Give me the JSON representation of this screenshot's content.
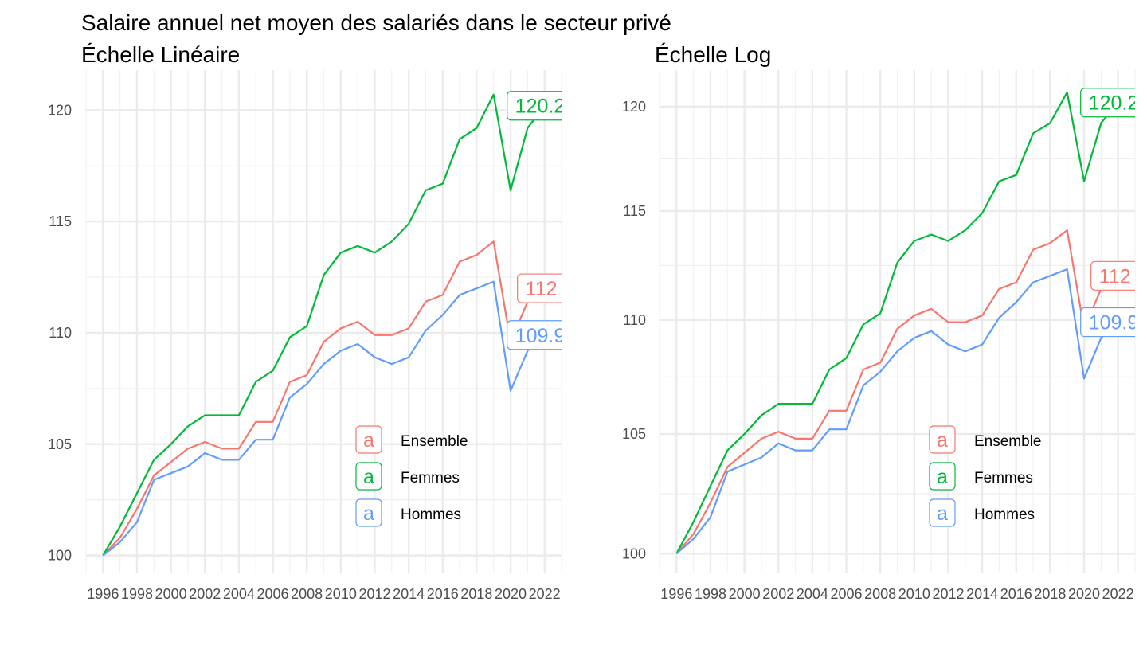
{
  "chart_data": [
    {
      "type": "line",
      "title": "Salaire annuel net moyen des salariés dans le secteur privé",
      "subtitle": "Échelle Linéaire",
      "scale": "linear",
      "xlabel": "",
      "ylabel": "",
      "xlim": [
        1995,
        2023
      ],
      "ylim": [
        99.2,
        121.8
      ],
      "x_ticks": [
        1996,
        1998,
        2000,
        2002,
        2004,
        2006,
        2008,
        2010,
        2012,
        2014,
        2016,
        2018,
        2020,
        2022
      ],
      "y_ticks": [
        100,
        105,
        110,
        115,
        120
      ],
      "grid": true,
      "legend_position": "bottom-right"
    },
    {
      "type": "line",
      "subtitle": "Échelle Log",
      "scale": "log",
      "xlabel": "",
      "ylabel": "",
      "xlim": [
        1995,
        2023
      ],
      "ylim": [
        99.2,
        121.8
      ],
      "x_ticks": [
        1996,
        1998,
        2000,
        2002,
        2004,
        2006,
        2008,
        2010,
        2012,
        2014,
        2016,
        2018,
        2020,
        2022
      ],
      "y_ticks": [
        100,
        105,
        110,
        115,
        120
      ],
      "grid": true,
      "legend_position": "bottom-right"
    }
  ],
  "x": [
    1996,
    1997,
    1998,
    1999,
    2000,
    2001,
    2002,
    2003,
    2004,
    2005,
    2006,
    2007,
    2008,
    2009,
    2010,
    2011,
    2012,
    2013,
    2014,
    2015,
    2016,
    2017,
    2018,
    2019,
    2020,
    2021,
    2022
  ],
  "series": [
    {
      "name": "Ensemble",
      "color": "#F8766D",
      "end_label": "112",
      "values": [
        100,
        100.8,
        102.1,
        103.6,
        104.2,
        104.8,
        105.1,
        104.8,
        104.8,
        106.0,
        106.0,
        107.8,
        108.1,
        109.6,
        110.2,
        110.5,
        109.9,
        109.9,
        110.2,
        111.4,
        111.7,
        113.2,
        113.5,
        114.1,
        109.6,
        111.4,
        112.0
      ]
    },
    {
      "name": "Femmes",
      "color": "#00BA38",
      "end_label": "120.2",
      "values": [
        100,
        101.3,
        102.8,
        104.3,
        105.0,
        105.8,
        106.3,
        106.3,
        106.3,
        107.8,
        108.3,
        109.8,
        110.3,
        112.6,
        113.6,
        113.9,
        113.6,
        114.1,
        114.9,
        116.4,
        116.7,
        118.7,
        119.2,
        120.7,
        116.4,
        119.2,
        120.2
      ]
    },
    {
      "name": "Hommes",
      "color": "#619CFF",
      "end_label": "109.9",
      "values": [
        100,
        100.6,
        101.5,
        103.4,
        103.7,
        104.0,
        104.6,
        104.3,
        104.3,
        105.2,
        105.2,
        107.1,
        107.7,
        108.6,
        109.2,
        109.5,
        108.9,
        108.6,
        108.9,
        110.1,
        110.8,
        111.7,
        112.0,
        112.3,
        107.4,
        109.2,
        109.9
      ]
    }
  ],
  "legend_key_glyph": "a"
}
